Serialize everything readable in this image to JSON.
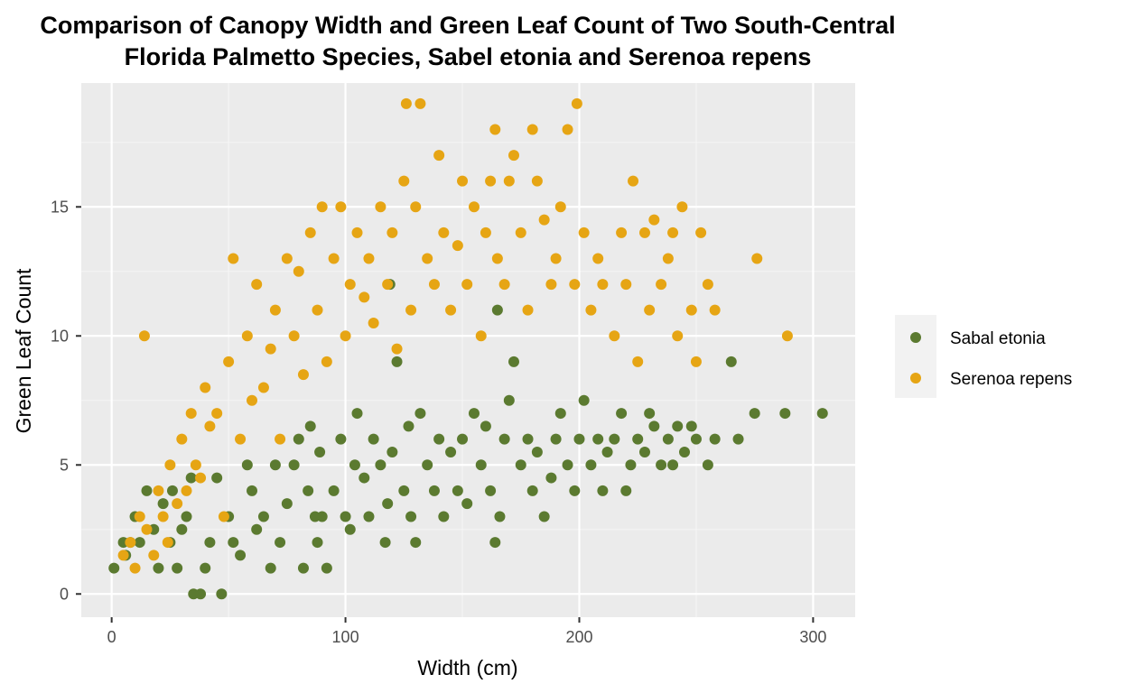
{
  "chart_data": {
    "type": "scatter",
    "title_lines": [
      "Comparison of Canopy Width and Green Leaf Count of Two South-Central",
      "Florida Palmetto Species, Sabel etonia and Serenoa repens"
    ],
    "xlabel": "Width (cm)",
    "ylabel": "Green Leaf Count",
    "xlim": [
      -13,
      318
    ],
    "ylim": [
      -0.9,
      19.8
    ],
    "x_ticks": [
      0,
      100,
      200,
      300
    ],
    "x_tick_labels": [
      "0",
      "100",
      "200",
      "300"
    ],
    "y_ticks": [
      0,
      5,
      10,
      15
    ],
    "y_tick_labels": [
      "0",
      "5",
      "10",
      "15"
    ],
    "grid": true,
    "legend_position": "right",
    "series": [
      {
        "name": "Sabal etonia",
        "color": "#5b7a30",
        "points": [
          [
            1,
            1
          ],
          [
            5,
            2
          ],
          [
            6,
            1.5
          ],
          [
            8,
            2
          ],
          [
            10,
            3
          ],
          [
            12,
            2
          ],
          [
            15,
            4
          ],
          [
            18,
            2.5
          ],
          [
            20,
            1
          ],
          [
            22,
            3.5
          ],
          [
            25,
            2
          ],
          [
            26,
            4
          ],
          [
            28,
            1
          ],
          [
            30,
            2.5
          ],
          [
            32,
            3
          ],
          [
            34,
            4.5
          ],
          [
            35,
            0
          ],
          [
            38,
            0
          ],
          [
            40,
            1
          ],
          [
            42,
            2
          ],
          [
            45,
            4.5
          ],
          [
            47,
            0
          ],
          [
            50,
            3
          ],
          [
            52,
            2
          ],
          [
            55,
            1.5
          ],
          [
            58,
            5
          ],
          [
            60,
            4
          ],
          [
            62,
            2.5
          ],
          [
            65,
            3
          ],
          [
            68,
            1
          ],
          [
            70,
            5
          ],
          [
            72,
            2
          ],
          [
            75,
            3.5
          ],
          [
            78,
            5
          ],
          [
            80,
            6
          ],
          [
            82,
            1
          ],
          [
            84,
            4
          ],
          [
            85,
            6.5
          ],
          [
            87,
            3
          ],
          [
            88,
            2
          ],
          [
            89,
            5.5
          ],
          [
            90,
            3
          ],
          [
            92,
            1
          ],
          [
            95,
            4
          ],
          [
            98,
            6
          ],
          [
            100,
            3
          ],
          [
            102,
            2.5
          ],
          [
            104,
            5
          ],
          [
            105,
            7
          ],
          [
            108,
            4.5
          ],
          [
            110,
            3
          ],
          [
            112,
            6
          ],
          [
            115,
            5
          ],
          [
            117,
            2
          ],
          [
            118,
            3.5
          ],
          [
            119,
            12
          ],
          [
            120,
            5.5
          ],
          [
            122,
            9
          ],
          [
            125,
            4
          ],
          [
            127,
            6.5
          ],
          [
            128,
            3
          ],
          [
            130,
            2
          ],
          [
            132,
            7
          ],
          [
            135,
            5
          ],
          [
            138,
            4
          ],
          [
            140,
            6
          ],
          [
            142,
            3
          ],
          [
            145,
            5.5
          ],
          [
            148,
            4
          ],
          [
            150,
            6
          ],
          [
            152,
            3.5
          ],
          [
            155,
            7
          ],
          [
            158,
            5
          ],
          [
            160,
            6.5
          ],
          [
            162,
            4
          ],
          [
            164,
            2
          ],
          [
            165,
            11
          ],
          [
            166,
            3
          ],
          [
            168,
            6
          ],
          [
            170,
            7.5
          ],
          [
            172,
            9
          ],
          [
            175,
            5
          ],
          [
            178,
            6
          ],
          [
            180,
            4
          ],
          [
            182,
            5.5
          ],
          [
            185,
            3
          ],
          [
            188,
            4.5
          ],
          [
            190,
            6
          ],
          [
            192,
            7
          ],
          [
            195,
            5
          ],
          [
            198,
            4
          ],
          [
            200,
            6
          ],
          [
            202,
            7.5
          ],
          [
            205,
            5
          ],
          [
            208,
            6
          ],
          [
            210,
            4
          ],
          [
            212,
            5.5
          ],
          [
            215,
            6
          ],
          [
            218,
            7
          ],
          [
            220,
            4
          ],
          [
            222,
            5
          ],
          [
            225,
            6
          ],
          [
            228,
            5.5
          ],
          [
            230,
            7
          ],
          [
            232,
            6.5
          ],
          [
            235,
            5
          ],
          [
            238,
            6
          ],
          [
            240,
            5
          ],
          [
            242,
            6.5
          ],
          [
            245,
            5.5
          ],
          [
            248,
            6.5
          ],
          [
            250,
            6
          ],
          [
            255,
            5
          ],
          [
            258,
            6
          ],
          [
            265,
            9
          ],
          [
            268,
            6
          ],
          [
            275,
            7
          ],
          [
            288,
            7
          ],
          [
            304,
            7
          ]
        ]
      },
      {
        "name": "Serenoa repens",
        "color": "#e6a514",
        "points": [
          [
            5,
            1.5
          ],
          [
            8,
            2
          ],
          [
            10,
            1
          ],
          [
            12,
            3
          ],
          [
            14,
            10
          ],
          [
            15,
            2.5
          ],
          [
            18,
            1.5
          ],
          [
            20,
            4
          ],
          [
            22,
            3
          ],
          [
            24,
            2
          ],
          [
            25,
            5
          ],
          [
            28,
            3.5
          ],
          [
            30,
            6
          ],
          [
            32,
            4
          ],
          [
            34,
            7
          ],
          [
            36,
            5
          ],
          [
            38,
            4.5
          ],
          [
            40,
            8
          ],
          [
            42,
            6.5
          ],
          [
            45,
            7
          ],
          [
            48,
            3
          ],
          [
            50,
            9
          ],
          [
            52,
            13
          ],
          [
            55,
            6
          ],
          [
            58,
            10
          ],
          [
            60,
            7.5
          ],
          [
            62,
            12
          ],
          [
            65,
            8
          ],
          [
            68,
            9.5
          ],
          [
            70,
            11
          ],
          [
            72,
            6
          ],
          [
            75,
            13
          ],
          [
            78,
            10
          ],
          [
            80,
            12.5
          ],
          [
            82,
            8.5
          ],
          [
            85,
            14
          ],
          [
            88,
            11
          ],
          [
            90,
            15
          ],
          [
            92,
            9
          ],
          [
            95,
            13
          ],
          [
            98,
            15
          ],
          [
            100,
            10
          ],
          [
            102,
            12
          ],
          [
            105,
            14
          ],
          [
            108,
            11.5
          ],
          [
            110,
            13
          ],
          [
            112,
            10.5
          ],
          [
            115,
            15
          ],
          [
            118,
            12
          ],
          [
            120,
            14
          ],
          [
            122,
            9.5
          ],
          [
            125,
            16
          ],
          [
            126,
            19
          ],
          [
            128,
            11
          ],
          [
            130,
            15
          ],
          [
            132,
            19
          ],
          [
            135,
            13
          ],
          [
            138,
            12
          ],
          [
            140,
            17
          ],
          [
            142,
            14
          ],
          [
            145,
            11
          ],
          [
            148,
            13.5
          ],
          [
            150,
            16
          ],
          [
            152,
            12
          ],
          [
            155,
            15
          ],
          [
            158,
            10
          ],
          [
            160,
            14
          ],
          [
            162,
            16
          ],
          [
            164,
            18
          ],
          [
            165,
            13
          ],
          [
            168,
            12
          ],
          [
            170,
            16
          ],
          [
            172,
            17
          ],
          [
            175,
            14
          ],
          [
            178,
            11
          ],
          [
            180,
            18
          ],
          [
            182,
            16
          ],
          [
            185,
            14.5
          ],
          [
            188,
            12
          ],
          [
            190,
            13
          ],
          [
            192,
            15
          ],
          [
            195,
            18
          ],
          [
            198,
            12
          ],
          [
            199,
            19
          ],
          [
            202,
            14
          ],
          [
            205,
            11
          ],
          [
            208,
            13
          ],
          [
            210,
            12
          ],
          [
            215,
            10
          ],
          [
            218,
            14
          ],
          [
            220,
            12
          ],
          [
            223,
            16
          ],
          [
            225,
            9
          ],
          [
            228,
            14
          ],
          [
            230,
            11
          ],
          [
            232,
            14.5
          ],
          [
            235,
            12
          ],
          [
            238,
            13
          ],
          [
            240,
            14
          ],
          [
            242,
            10
          ],
          [
            244,
            15
          ],
          [
            248,
            11
          ],
          [
            250,
            9
          ],
          [
            252,
            14
          ],
          [
            255,
            12
          ],
          [
            258,
            11
          ],
          [
            276,
            13
          ],
          [
            289,
            10
          ]
        ]
      }
    ]
  }
}
